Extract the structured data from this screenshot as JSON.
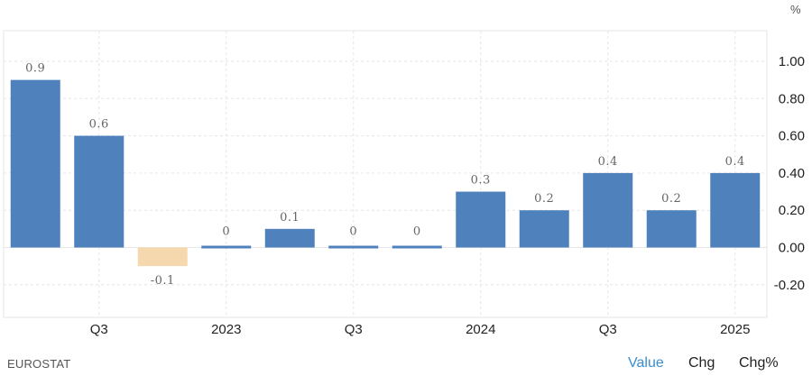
{
  "unit_label": "%",
  "source": "EUROSTAT",
  "tabs": [
    {
      "label": "Value",
      "active": true
    },
    {
      "label": "Chg",
      "active": false
    },
    {
      "label": "Chg%",
      "active": false
    }
  ],
  "colors": {
    "positive": "#4f81bd",
    "negative": "#f6d8ae",
    "grid": "#e6e6e6",
    "axis_text": "#222222",
    "data_label": "#666666",
    "active_tab": "#3b8ed0"
  },
  "chart_data": {
    "type": "bar",
    "values": [
      0.9,
      0.6,
      -0.1,
      0,
      0.1,
      0,
      0,
      0.3,
      0.2,
      0.4,
      0.2,
      0.4
    ],
    "data_labels": [
      "0.9",
      "0.6",
      "-0.1",
      "0",
      "0.1",
      "0",
      "0",
      "0.3",
      "0.2",
      "0.4",
      "0.2",
      "0.4"
    ],
    "x_tick_labels": [
      "",
      "Q3",
      "",
      "2023",
      "",
      "Q3",
      "",
      "2024",
      "",
      "Q3",
      "",
      "2025"
    ],
    "y_ticks": [
      1.0,
      0.8,
      0.6,
      0.4,
      0.2,
      0.0,
      -0.2
    ],
    "y_tick_labels": [
      "1.00",
      "0.80",
      "0.60",
      "0.40",
      "0.20",
      "0.00",
      "-0.20"
    ],
    "ylim": [
      -0.38,
      1.15
    ],
    "grid": true,
    "y_axis_side": "right"
  }
}
